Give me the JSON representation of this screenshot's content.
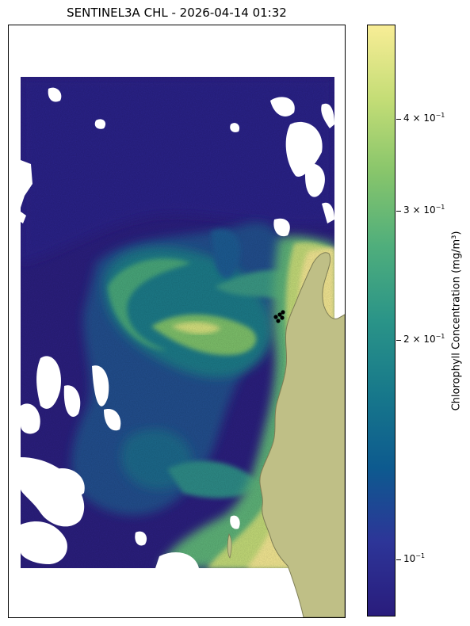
{
  "title": "SENTINEL3A CHL - 2026-04-14 01:32",
  "map": {
    "land_color": "#bfbf86",
    "coast_color": "#7d7d55",
    "nodata_color": "#ffffff",
    "marker_color": "#000000",
    "low_color": "#2b1e7e",
    "high_color": "#f8e98f"
  },
  "colorbar": {
    "label": "Chlorophyll Concentration (mg/m³)",
    "colormap": "haline",
    "scale": "log",
    "stops": [
      "#291c7c",
      "#2d3598",
      "#0d5a8f",
      "#17788b",
      "#2a9488",
      "#4fae7c",
      "#87c56b",
      "#c4dd76",
      "#f8ed96"
    ],
    "ticks": [
      {
        "base": "4 × 10",
        "exp": "−1"
      },
      {
        "base": "3 × 10",
        "exp": "−1"
      },
      {
        "base": "2 × 10",
        "exp": "−1"
      },
      {
        "base": "10",
        "exp": "−1"
      }
    ]
  }
}
